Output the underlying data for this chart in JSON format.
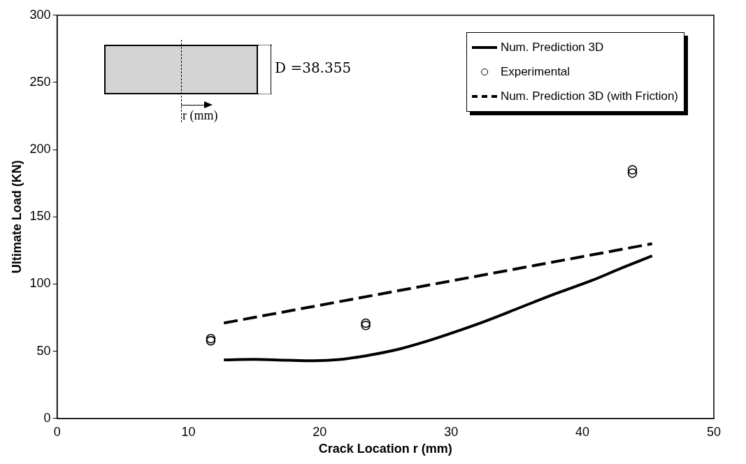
{
  "chart_data": {
    "type": "line",
    "xlabel": "Crack Location r (mm)",
    "ylabel": "Ultimate Load (KN)",
    "xlim": [
      0,
      50
    ],
    "xticks": [
      0,
      10,
      20,
      30,
      40,
      50
    ],
    "ylim": [
      0,
      300
    ],
    "yticks": [
      0,
      50,
      100,
      150,
      200,
      250,
      300
    ],
    "grid": false,
    "legend": "top right",
    "annotations": [
      "D =38.355",
      "r (mm)"
    ],
    "series": [
      {
        "name": "Num. Prediction 3D",
        "type": "line",
        "color": "#000000",
        "line_style": "solid",
        "marker": "none",
        "x": [
          12.7,
          15,
          17.5,
          19.5,
          21.5,
          23.5,
          26,
          28,
          30,
          32.5,
          35.3,
          38,
          40.7,
          43,
          45.3
        ],
        "values": [
          43.6,
          44,
          43.3,
          42.9,
          43.8,
          46.6,
          51.5,
          57,
          63.4,
          72,
          82.7,
          93,
          102.6,
          112,
          121
        ]
      },
      {
        "name": "Experimental",
        "type": "scatter",
        "color": "#000000",
        "marker": "circle",
        "x": [
          11.7,
          11.7,
          23.5,
          23.5,
          43.8,
          43.8
        ],
        "values": [
          59.4,
          57.8,
          70.9,
          69.2,
          185,
          182.5
        ]
      },
      {
        "name": "Num. Prediction 3D (with Friction)",
        "type": "line",
        "color": "#000000",
        "line_style": "dashed",
        "marker": "none",
        "x": [
          12.7,
          45.3
        ],
        "values": [
          71,
          130
        ]
      }
    ]
  }
}
